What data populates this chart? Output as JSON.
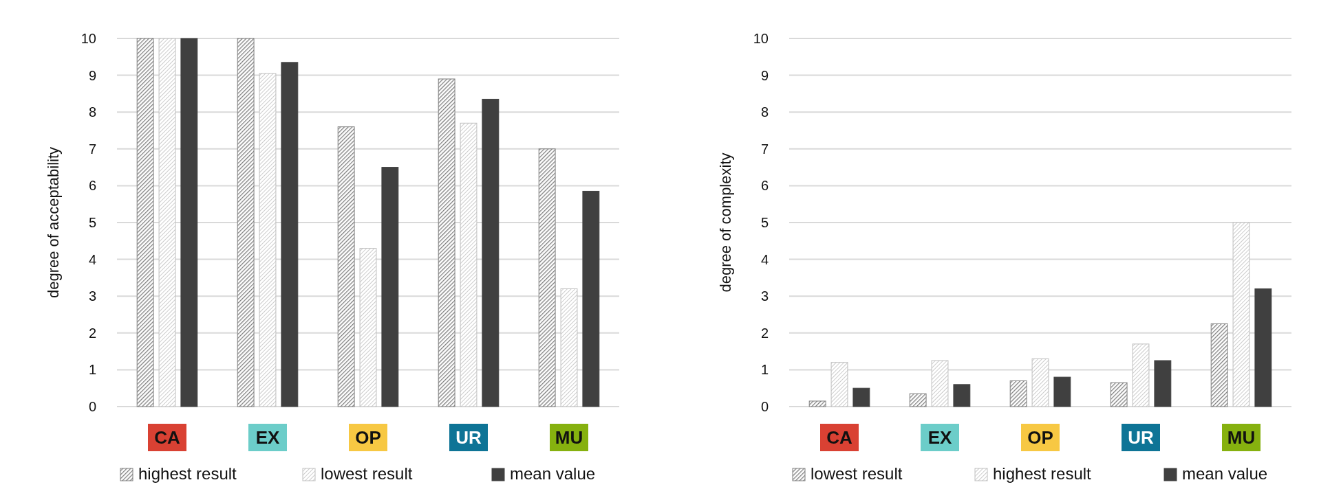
{
  "chart_data": [
    {
      "type": "bar",
      "ylabel": "degree of acceptability",
      "categories": [
        "CA",
        "EX",
        "OP",
        "UR",
        "MU"
      ],
      "series": [
        {
          "name": "highest result",
          "color": "#7f7f7f",
          "values": [
            10,
            10,
            7.6,
            8.9,
            7.0
          ]
        },
        {
          "name": "lowest result",
          "color": "#bfbfbf",
          "values": [
            10,
            9.05,
            4.3,
            7.7,
            3.2
          ]
        },
        {
          "name": "mean value",
          "color": "#404040",
          "values": [
            10,
            9.35,
            6.5,
            8.35,
            5.85
          ]
        }
      ],
      "ylim": [
        0,
        10
      ],
      "yticks": [
        0,
        1,
        2,
        3,
        4,
        5,
        6,
        7,
        8,
        9,
        10
      ],
      "grid": "y",
      "legend": "bottom"
    },
    {
      "type": "bar",
      "ylabel": "degree of complexity",
      "categories": [
        "CA",
        "EX",
        "OP",
        "UR",
        "MU"
      ],
      "series": [
        {
          "name": "lowest result",
          "color": "#7f7f7f",
          "values": [
            0.15,
            0.35,
            0.7,
            0.65,
            2.25
          ]
        },
        {
          "name": "highest result",
          "color": "#bfbfbf",
          "values": [
            1.2,
            1.25,
            1.3,
            1.7,
            5.0
          ]
        },
        {
          "name": "mean value",
          "color": "#404040",
          "values": [
            0.5,
            0.6,
            0.8,
            1.25,
            3.2
          ]
        }
      ],
      "ylim": [
        0,
        10
      ],
      "yticks": [
        0,
        1,
        2,
        3,
        4,
        5,
        6,
        7,
        8,
        9,
        10
      ],
      "grid": "y",
      "legend": "bottom"
    }
  ]
}
